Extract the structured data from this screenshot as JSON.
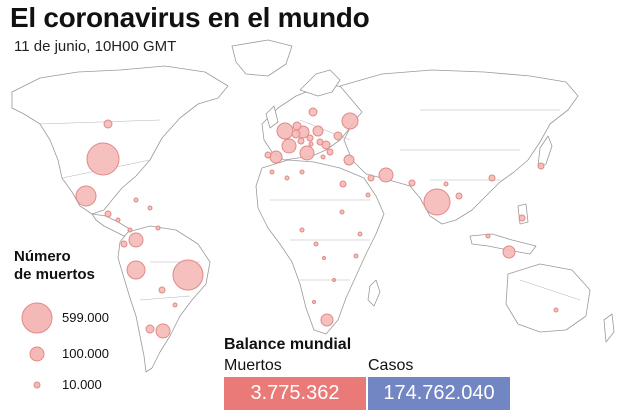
{
  "header": {
    "title": "El coronavirus en el mundo",
    "subtitle": "11 de junio, 10H00 GMT"
  },
  "legend": {
    "title_line1": "Número",
    "title_line2": "de muertos",
    "entries": [
      {
        "label": "599.000",
        "deaths": 599000
      },
      {
        "label": "100.000",
        "deaths": 100000
      },
      {
        "label": "10.000",
        "deaths": 10000
      }
    ]
  },
  "balance": {
    "title": "Balance mundial",
    "deaths_label": "Muertos",
    "deaths_value": "3.775.362",
    "cases_label": "Casos",
    "cases_value": "174.762.040"
  },
  "colors": {
    "bubble_fill": "#f4b9b6",
    "bubble_stroke": "#e08a86",
    "deaths_box": "#e97a78",
    "cases_box": "#7386c4",
    "map_outline": "#9a9a9a"
  }
}
